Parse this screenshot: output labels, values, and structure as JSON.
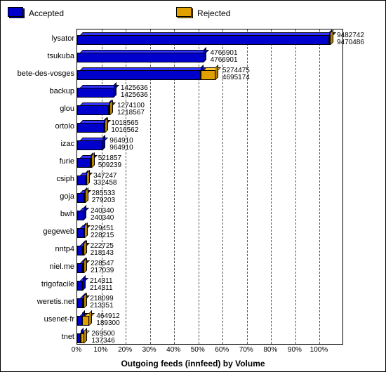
{
  "chart": {
    "type": "bar",
    "title": "Outgoing feeds (innfeed) by Volume",
    "legend": [
      {
        "label": "Accepted",
        "color": "#0000cc"
      },
      {
        "label": "Rejected",
        "color": "#e0a000"
      }
    ],
    "x_axis": {
      "ticks": [
        "0%",
        "10%",
        "20%",
        "30%",
        "40%",
        "50%",
        "60%",
        "70%",
        "80%",
        "90%",
        "100%"
      ],
      "max_pct": 110
    },
    "colors": {
      "accepted": "#0000cc",
      "rejected": "#e0a000",
      "accepted_top": "#3333ff",
      "rejected_top": "#ffcc33",
      "grid": "#555555",
      "border": "#000000",
      "background": "#ffffff"
    },
    "rows": [
      {
        "feed": "lysator",
        "accepted_pct": 104,
        "rejected_pct": 0.2,
        "top_val": "9482742",
        "bot_val": "9470486"
      },
      {
        "feed": "tsukuba",
        "accepted_pct": 52,
        "rejected_pct": 0,
        "top_val": "4766901",
        "bot_val": "4766901"
      },
      {
        "feed": "bete-des-vosges",
        "accepted_pct": 51,
        "rejected_pct": 6,
        "top_val": "5274475",
        "bot_val": "4695174"
      },
      {
        "feed": "backup",
        "accepted_pct": 15,
        "rejected_pct": 0,
        "top_val": "1425636",
        "bot_val": "1425636"
      },
      {
        "feed": "glou",
        "accepted_pct": 13,
        "rejected_pct": 0.6,
        "top_val": "1274100",
        "bot_val": "1218567"
      },
      {
        "feed": "ortolo",
        "accepted_pct": 11,
        "rejected_pct": 0.1,
        "top_val": "1018565",
        "bot_val": "1016562"
      },
      {
        "feed": "izac",
        "accepted_pct": 10.5,
        "rejected_pct": 0,
        "top_val": "964910",
        "bot_val": "964910"
      },
      {
        "feed": "furie",
        "accepted_pct": 5.5,
        "rejected_pct": 0.2,
        "top_val": "521857",
        "bot_val": "509239"
      },
      {
        "feed": "csiph",
        "accepted_pct": 3.6,
        "rejected_pct": 0.2,
        "top_val": "347247",
        "bot_val": "332458"
      },
      {
        "feed": "goja",
        "accepted_pct": 3.0,
        "rejected_pct": 0.1,
        "top_val": "285533",
        "bot_val": "279203"
      },
      {
        "feed": "bwh",
        "accepted_pct": 2.6,
        "rejected_pct": 0,
        "top_val": "240340",
        "bot_val": "240340"
      },
      {
        "feed": "gegeweb",
        "accepted_pct": 2.5,
        "rejected_pct": 0.1,
        "top_val": "229451",
        "bot_val": "228215"
      },
      {
        "feed": "nntp4",
        "accepted_pct": 2.4,
        "rejected_pct": 0.1,
        "top_val": "222725",
        "bot_val": "218143"
      },
      {
        "feed": "niel.me",
        "accepted_pct": 2.4,
        "rejected_pct": 0.2,
        "top_val": "228547",
        "bot_val": "217039"
      },
      {
        "feed": "trigofacile",
        "accepted_pct": 2.3,
        "rejected_pct": 0,
        "top_val": "214311",
        "bot_val": "214311"
      },
      {
        "feed": "weretis.net",
        "accepted_pct": 2.3,
        "rejected_pct": 0.1,
        "top_val": "218099",
        "bot_val": "213351"
      },
      {
        "feed": "usenet-fr",
        "accepted_pct": 2.0,
        "rejected_pct": 3,
        "top_val": "464912",
        "bot_val": "189300"
      },
      {
        "feed": "tnet",
        "accepted_pct": 1.5,
        "rejected_pct": 1.5,
        "top_val": "269500",
        "bot_val": "137346"
      }
    ]
  }
}
